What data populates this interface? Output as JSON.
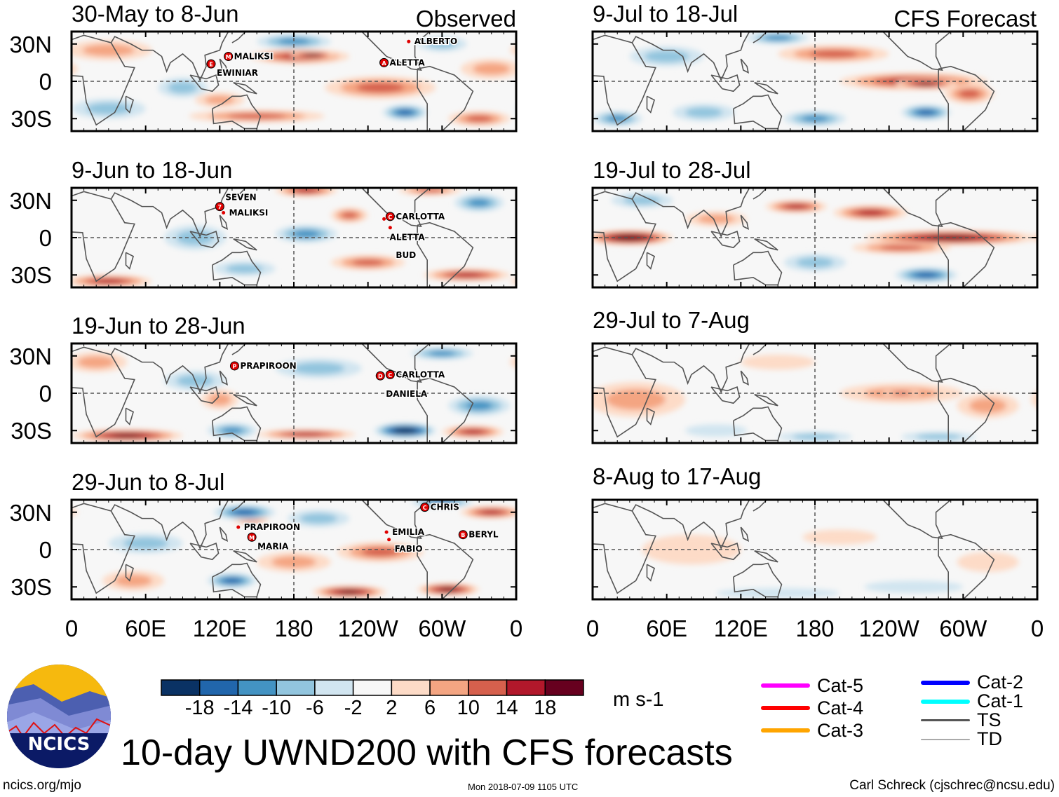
{
  "colors": {
    "bins": [
      "#0a3264",
      "#2166ac",
      "#4393c3",
      "#92c5de",
      "#d1e5f0",
      "#f7f7f7",
      "#fddbc7",
      "#f4a582",
      "#d6604d",
      "#b2182b",
      "#67001f"
    ],
    "bin_edges": [
      -18,
      -14,
      -10,
      -6,
      -2,
      2,
      6,
      10,
      14,
      18
    ],
    "coast": "#555555",
    "storm": "#e00000"
  },
  "axes": {
    "lat_range": [
      -40,
      40
    ],
    "lon_range": [
      0,
      360
    ],
    "y_labels": [
      "30N",
      "0",
      "30S"
    ],
    "x_labels": [
      "0",
      "60E",
      "120E",
      "180",
      "120W",
      "60W",
      "0"
    ]
  },
  "column_labels": {
    "observed": "Observed",
    "forecast": "CFS Forecast"
  },
  "panels": [
    {
      "title": "30-May to 8-Jun",
      "col": 0,
      "row": 0,
      "features": [
        [
          185,
          20,
          40,
          6,
          14
        ],
        [
          195,
          21,
          18,
          3,
          22
        ],
        [
          180,
          32,
          30,
          6,
          -10
        ],
        [
          250,
          -5,
          45,
          9,
          10
        ],
        [
          270,
          -25,
          18,
          6,
          -14
        ],
        [
          150,
          -28,
          55,
          5,
          10
        ],
        [
          30,
          -22,
          30,
          8,
          -6
        ],
        [
          30,
          25,
          35,
          8,
          6
        ],
        [
          330,
          -30,
          25,
          6,
          10
        ],
        [
          90,
          -5,
          20,
          8,
          -6
        ],
        [
          340,
          10,
          25,
          8,
          6
        ],
        [
          120,
          -15,
          20,
          6,
          6
        ],
        [
          300,
          30,
          20,
          6,
          -6
        ]
      ],
      "storms": [
        {
          "name": "EWINIAR",
          "letter": "E",
          "lon": 113,
          "lat": 14
        },
        {
          "name": "MALIKSI",
          "letter": "M",
          "lon": 127,
          "lat": 20
        },
        {
          "name": "ALBERTO",
          "letter": "",
          "lon": 273,
          "lat": 32
        },
        {
          "name": "ALETTA",
          "letter": "A",
          "lon": 253,
          "lat": 15
        }
      ]
    },
    {
      "title": "9-Jun to 18-Jun",
      "col": 0,
      "row": 1,
      "features": [
        [
          190,
          38,
          25,
          5,
          14
        ],
        [
          190,
          3,
          25,
          7,
          -10
        ],
        [
          225,
          18,
          15,
          6,
          10
        ],
        [
          30,
          -35,
          35,
          5,
          14
        ],
        [
          320,
          -30,
          35,
          5,
          14
        ],
        [
          100,
          0,
          25,
          10,
          -6
        ],
        [
          240,
          -20,
          30,
          6,
          10
        ],
        [
          330,
          28,
          20,
          7,
          -10
        ],
        [
          290,
          38,
          25,
          4,
          10
        ],
        [
          140,
          -25,
          25,
          6,
          -6
        ]
      ],
      "storms": [
        {
          "name": "SEVEN",
          "letter": "7",
          "lon": 120,
          "lat": 25
        },
        {
          "name": "MALIKSI",
          "letter": "",
          "lon": 123,
          "lat": 20
        },
        {
          "name": "ALETTA",
          "letter": "",
          "lon": 253,
          "lat": 15
        },
        {
          "name": "CARLOTTA",
          "letter": "C",
          "lon": 258,
          "lat": 17
        },
        {
          "name": "BUD",
          "letter": "",
          "lon": 258,
          "lat": 8
        }
      ]
    },
    {
      "title": "19-Jun to 28-Jun",
      "col": 0,
      "row": 2,
      "features": [
        [
          45,
          -34,
          45,
          5,
          18
        ],
        [
          270,
          -30,
          25,
          6,
          -22
        ],
        [
          190,
          -33,
          40,
          4,
          14
        ],
        [
          130,
          -30,
          20,
          6,
          -10
        ],
        [
          200,
          20,
          35,
          8,
          -6
        ],
        [
          325,
          -31,
          25,
          5,
          14
        ],
        [
          330,
          -10,
          25,
          8,
          -10
        ],
        [
          20,
          25,
          25,
          8,
          6
        ],
        [
          300,
          32,
          25,
          5,
          -10
        ],
        [
          100,
          10,
          25,
          8,
          -6
        ],
        [
          120,
          -5,
          15,
          8,
          6
        ]
      ],
      "storms": [
        {
          "name": "PRAPIROON",
          "letter": "P",
          "lon": 132,
          "lat": 22
        },
        {
          "name": "CARLOTTA",
          "letter": "C",
          "lon": 258,
          "lat": 15
        },
        {
          "name": "DANIELA",
          "letter": "D",
          "lon": 250,
          "lat": 14
        }
      ]
    },
    {
      "title": "29-Jun to 8-Jul",
      "col": 0,
      "row": 3,
      "features": [
        [
          140,
          30,
          25,
          6,
          -14
        ],
        [
          250,
          -2,
          35,
          8,
          10
        ],
        [
          180,
          -10,
          30,
          8,
          6
        ],
        [
          130,
          -25,
          20,
          6,
          -14
        ],
        [
          225,
          -34,
          30,
          5,
          18
        ],
        [
          305,
          -32,
          25,
          5,
          18
        ],
        [
          340,
          30,
          25,
          5,
          14
        ],
        [
          300,
          38,
          25,
          4,
          -14
        ],
        [
          200,
          25,
          25,
          7,
          -6
        ],
        [
          50,
          -25,
          25,
          8,
          6
        ],
        [
          145,
          25,
          15,
          5,
          10
        ],
        [
          60,
          5,
          30,
          8,
          -6
        ]
      ],
      "storms": [
        {
          "name": "PRAPIROON",
          "letter": "",
          "lon": 135,
          "lat": 18
        },
        {
          "name": "MARIA",
          "letter": "M",
          "lon": 146,
          "lat": 10
        },
        {
          "name": "EMILIA",
          "letter": "",
          "lon": 255,
          "lat": 14
        },
        {
          "name": "FABIO",
          "letter": "",
          "lon": 257,
          "lat": 8
        },
        {
          "name": "CHRIS",
          "letter": "C",
          "lon": 286,
          "lat": 34
        },
        {
          "name": "BERYL",
          "letter": "B",
          "lon": 317,
          "lat": 12
        }
      ]
    },
    {
      "title": "9-Jul to 18-Jul",
      "col": 1,
      "row": 0,
      "features": [
        [
          260,
          0,
          60,
          7,
          14
        ],
        [
          270,
          -2,
          25,
          4,
          18
        ],
        [
          195,
          22,
          45,
          7,
          10
        ],
        [
          270,
          -25,
          20,
          6,
          -14
        ],
        [
          180,
          -30,
          25,
          6,
          -10
        ],
        [
          90,
          -25,
          25,
          7,
          -6
        ],
        [
          150,
          35,
          25,
          5,
          -10
        ],
        [
          305,
          -10,
          20,
          8,
          10
        ],
        [
          20,
          -30,
          20,
          6,
          -10
        ],
        [
          60,
          20,
          30,
          8,
          -6
        ]
      ],
      "storms": []
    },
    {
      "title": "19-Jul to 28-Jul",
      "col": 1,
      "row": 1,
      "features": [
        [
          30,
          0,
          35,
          6,
          22
        ],
        [
          290,
          0,
          70,
          6,
          18
        ],
        [
          165,
          25,
          25,
          5,
          14
        ],
        [
          225,
          20,
          30,
          6,
          14
        ],
        [
          270,
          -30,
          25,
          6,
          -14
        ],
        [
          180,
          -20,
          25,
          7,
          -6
        ],
        [
          40,
          30,
          25,
          6,
          -6
        ],
        [
          100,
          15,
          25,
          6,
          6
        ],
        [
          250,
          -8,
          40,
          5,
          10
        ]
      ],
      "storms": []
    },
    {
      "title": "29-Jul to 7-Aug",
      "col": 1,
      "row": 2,
      "features": [
        [
          35,
          -5,
          40,
          14,
          6
        ],
        [
          250,
          0,
          50,
          8,
          6
        ],
        [
          250,
          0,
          15,
          3,
          10
        ],
        [
          320,
          -10,
          25,
          10,
          6
        ],
        [
          180,
          -35,
          30,
          4,
          -6
        ],
        [
          280,
          -35,
          30,
          4,
          -6
        ],
        [
          100,
          -30,
          25,
          5,
          -2
        ],
        [
          150,
          25,
          30,
          6,
          2
        ]
      ],
      "storms": []
    },
    {
      "title": "8-Aug to 17-Aug",
      "col": 1,
      "row": 3,
      "features": [
        [
          80,
          0,
          40,
          12,
          4
        ],
        [
          150,
          -35,
          50,
          4,
          -4
        ],
        [
          260,
          -30,
          40,
          5,
          -3
        ],
        [
          320,
          -10,
          25,
          8,
          3
        ],
        [
          200,
          10,
          30,
          6,
          3
        ]
      ],
      "storms": []
    }
  ],
  "colorbar": {
    "labels": [
      "-18",
      "-14",
      "-10",
      "-6",
      "-2",
      "2",
      "6",
      "10",
      "14",
      "18"
    ],
    "units": "m s-1"
  },
  "legend": [
    {
      "label": "Cat-5",
      "color": "#ff00ff"
    },
    {
      "label": "Cat-4",
      "color": "#ff0000"
    },
    {
      "label": "Cat-3",
      "color": "#ffa500"
    },
    {
      "label": "Cat-2",
      "color": "#0000ff"
    },
    {
      "label": "Cat-1",
      "color": "#00ffff"
    },
    {
      "label": "TS",
      "color": "#555555"
    },
    {
      "label": "TD",
      "color": "#aaaaaa"
    }
  ],
  "logo": {
    "text": "NCICS"
  },
  "title": "10-day UWND200 with CFS forecasts",
  "footer": {
    "left": "ncics.org/mjo",
    "center": "Mon 2018-07-09 1105 UTC",
    "right": "Carl Schreck (cjschrec@ncsu.edu)"
  }
}
